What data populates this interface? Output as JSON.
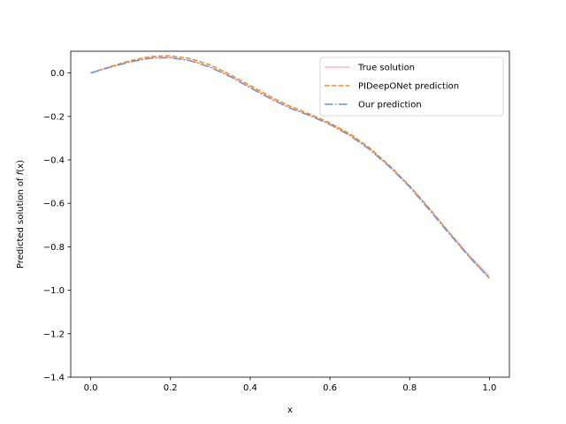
{
  "chart_data": {
    "type": "line",
    "title": "",
    "xlabel": "x",
    "ylabel_prefix": "Predicted solution of ",
    "ylabel_func": "f",
    "ylabel_arg": "(x)",
    "xlim": [
      -0.05,
      1.05
    ],
    "ylim": [
      -1.4,
      0.1
    ],
    "xticks": [
      0.0,
      0.2,
      0.4,
      0.6,
      0.8,
      1.0
    ],
    "xtick_labels": [
      "0.0",
      "0.2",
      "0.4",
      "0.6",
      "0.8",
      "1.0"
    ],
    "yticks": [
      -1.4,
      -1.2,
      -1.0,
      -0.8,
      -0.6,
      -0.4,
      -0.2,
      0.0
    ],
    "ytick_labels": [
      "−1.4",
      "−1.2",
      "−1.0",
      "−0.8",
      "−0.6",
      "−0.4",
      "−0.2",
      "0.0"
    ],
    "grid": false,
    "legend_position": "top-right",
    "series": [
      {
        "name": "True solution",
        "color": "#ffb6c1",
        "dash": "solid",
        "x": [
          0.0,
          0.05,
          0.1,
          0.15,
          0.2,
          0.25,
          0.3,
          0.35,
          0.4,
          0.45,
          0.5,
          0.55,
          0.6,
          0.65,
          0.7,
          0.75,
          0.8,
          0.85,
          0.9,
          0.95,
          1.0
        ],
        "y": [
          0.0,
          0.028,
          0.053,
          0.07,
          0.072,
          0.058,
          0.028,
          -0.015,
          -0.065,
          -0.115,
          -0.16,
          -0.195,
          -0.235,
          -0.285,
          -0.35,
          -0.43,
          -0.52,
          -0.625,
          -0.735,
          -0.84,
          -0.935
        ]
      },
      {
        "name": "PIDeepONet prediction",
        "color": "#ff8c00",
        "dash": "dashed",
        "x": [
          0.0,
          0.05,
          0.1,
          0.15,
          0.2,
          0.25,
          0.3,
          0.35,
          0.4,
          0.45,
          0.5,
          0.55,
          0.6,
          0.65,
          0.7,
          0.75,
          0.8,
          0.85,
          0.9,
          0.95,
          1.0
        ],
        "y": [
          0.0,
          0.03,
          0.057,
          0.076,
          0.079,
          0.066,
          0.037,
          -0.008,
          -0.058,
          -0.108,
          -0.153,
          -0.19,
          -0.23,
          -0.28,
          -0.345,
          -0.427,
          -0.52,
          -0.625,
          -0.738,
          -0.846,
          -0.945
        ]
      },
      {
        "name": "Our prediction",
        "color": "#6495ed",
        "dash": "dashdot",
        "x": [
          0.0,
          0.05,
          0.1,
          0.15,
          0.2,
          0.25,
          0.3,
          0.35,
          0.4,
          0.45,
          0.5,
          0.55,
          0.6,
          0.65,
          0.7,
          0.75,
          0.8,
          0.85,
          0.9,
          0.95,
          1.0
        ],
        "y": [
          0.0,
          0.027,
          0.051,
          0.068,
          0.07,
          0.056,
          0.026,
          -0.017,
          -0.068,
          -0.118,
          -0.162,
          -0.197,
          -0.237,
          -0.288,
          -0.353,
          -0.433,
          -0.525,
          -0.632,
          -0.742,
          -0.848,
          -0.945
        ]
      }
    ]
  }
}
